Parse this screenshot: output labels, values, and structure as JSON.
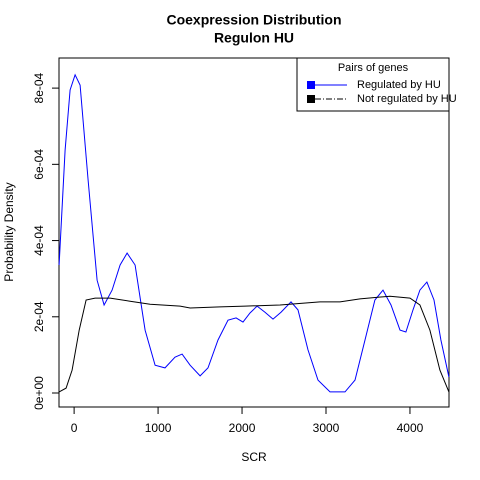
{
  "chart_data": {
    "type": "line",
    "title": [
      "Coexpression Distribution",
      "Regulon HU"
    ],
    "x_label": "SCR",
    "y_label": "Probability Density",
    "xlim": [
      -180,
      4465
    ],
    "ylim": [
      -3.67e-05,
      0.000879
    ],
    "xticks": [
      0,
      1000,
      2000,
      3000,
      4000
    ],
    "yticks": [
      {
        "value": 0,
        "label": "0e+00"
      },
      {
        "value": 0.0002,
        "label": "2e-04"
      },
      {
        "value": 0.0004,
        "label": "4e-04"
      },
      {
        "value": 0.0006,
        "label": "6e-04"
      },
      {
        "value": 0.0008,
        "label": "8e-04"
      }
    ],
    "legend_title": "Pairs of genes",
    "legend_position": "topright",
    "series": [
      {
        "name": "Regulated by  HU",
        "color": "#0000ff",
        "legend_dash": "none",
        "x": [
          -179,
          -107,
          -48,
          12,
          71,
          167,
          274,
          357,
          452,
          548,
          631,
          726,
          845,
          964,
          1083,
          1202,
          1286,
          1381,
          1500,
          1595,
          1714,
          1833,
          1929,
          2012,
          2095,
          2179,
          2274,
          2369,
          2464,
          2583,
          2667,
          2786,
          2905,
          3048,
          3226,
          3345,
          3464,
          3583,
          3679,
          3774,
          3881,
          3952,
          4036,
          4119,
          4202,
          4286,
          4369,
          4464
        ],
        "values": [
          0.000336,
          0.000637,
          0.000795,
          0.000835,
          0.000808,
          0.000559,
          0.000296,
          0.000231,
          0.00027,
          0.000336,
          0.000367,
          0.000336,
          0.000165,
          7.3e-05,
          6.6e-05,
          9.4e-05,
          0.000102,
          7.3e-05,
          4.5e-05,
          6.6e-05,
          0.000139,
          0.000191,
          0.000197,
          0.000186,
          0.00021,
          0.000228,
          0.000212,
          0.000194,
          0.000212,
          0.000239,
          0.000218,
          0.000113,
          3.4e-05,
          3e-06,
          3e-06,
          3.4e-05,
          0.000139,
          0.000244,
          0.00027,
          0.000231,
          0.000165,
          0.00016,
          0.000218,
          0.00027,
          0.000291,
          0.000244,
          0.000139,
          4.2e-05
        ]
      },
      {
        "name": "Not regulated by  HU",
        "color": "#000000",
        "legend_dash": "6 2 1 2",
        "x": [
          -179,
          -95,
          -24,
          60,
          143,
          250,
          429,
          667,
          905,
          1262,
          1381,
          1738,
          2036,
          2452,
          2929,
          3167,
          3405,
          3762,
          4000,
          4119,
          4238,
          4357,
          4464
        ],
        "values": [
          3e-06,
          1.3e-05,
          6e-05,
          0.000165,
          0.000244,
          0.000249,
          0.000249,
          0.000241,
          0.000233,
          0.000228,
          0.000223,
          0.000226,
          0.000228,
          0.000231,
          0.000239,
          0.000239,
          0.000247,
          0.000254,
          0.000249,
          0.000231,
          0.000165,
          6e-05,
          3e-06
        ]
      }
    ]
  }
}
